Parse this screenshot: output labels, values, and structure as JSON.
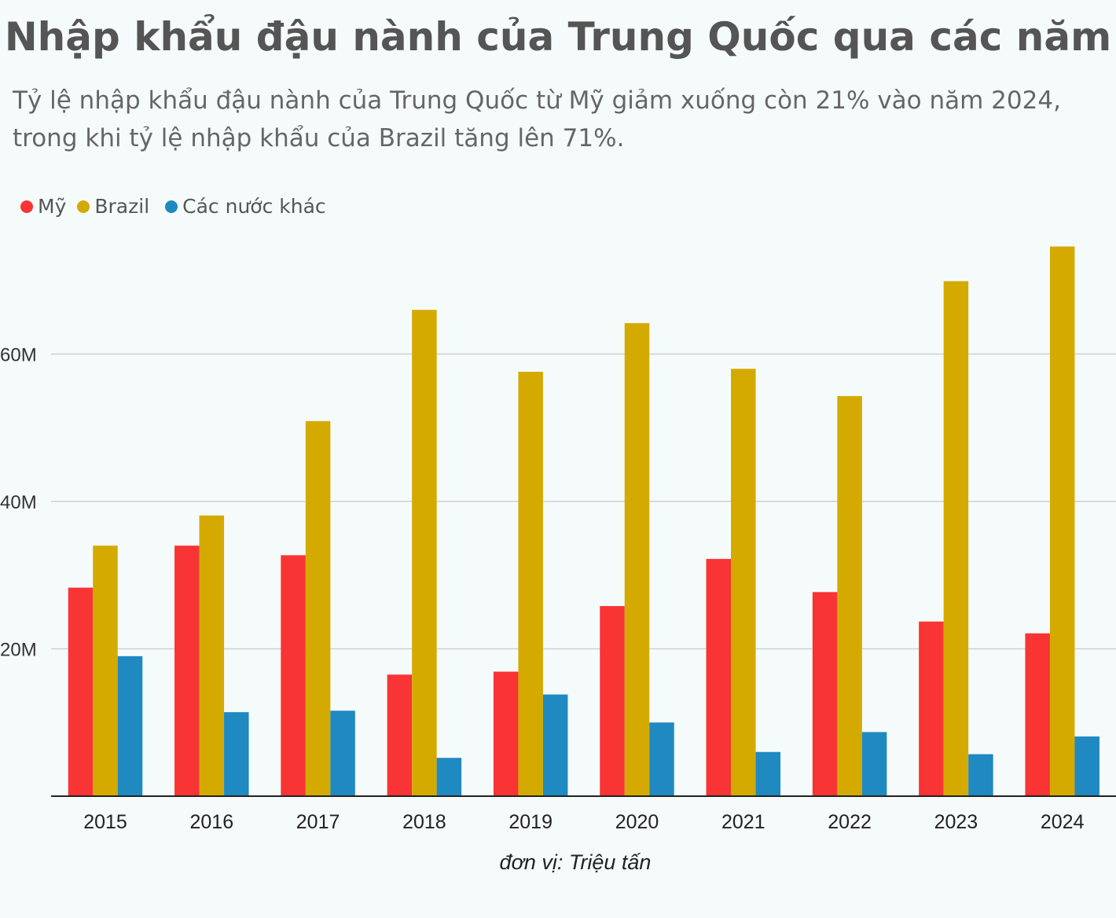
{
  "chart_data": {
    "type": "bar",
    "title": "Nhập khẩu đậu nành của Trung Quốc qua các năm",
    "subtitle": "Tỷ lệ nhập khẩu đậu nành của Trung Quốc từ Mỹ giảm xuống còn 21% vào năm 2024, trong khi tỷ lệ nhập khẩu của Brazil tăng lên 71%.",
    "xlabel": "đơn vị: Triệu tấn",
    "ylabel": "",
    "categories": [
      "2015",
      "2016",
      "2017",
      "2018",
      "2019",
      "2020",
      "2021",
      "2022",
      "2023",
      "2024"
    ],
    "series": [
      {
        "name": "Mỹ",
        "color": "#f83434",
        "values": [
          28.3,
          34.0,
          32.7,
          16.5,
          16.9,
          25.8,
          32.2,
          27.7,
          23.7,
          22.1
        ]
      },
      {
        "name": "Brazil",
        "color": "#d4aa00",
        "values": [
          34.0,
          38.1,
          50.9,
          66.0,
          57.6,
          64.2,
          58.0,
          54.3,
          69.9,
          74.6
        ]
      },
      {
        "name": "Các nước khác",
        "color": "#1f89c2",
        "values": [
          19.0,
          11.4,
          11.6,
          5.2,
          13.8,
          10.0,
          6.0,
          8.7,
          5.7,
          8.1
        ]
      }
    ],
    "yticks": [
      "20M",
      "40M",
      "60M"
    ],
    "ytick_values": [
      20,
      40,
      60
    ],
    "ylim": [
      0,
      80
    ],
    "grid": true,
    "legend": "top-left"
  }
}
